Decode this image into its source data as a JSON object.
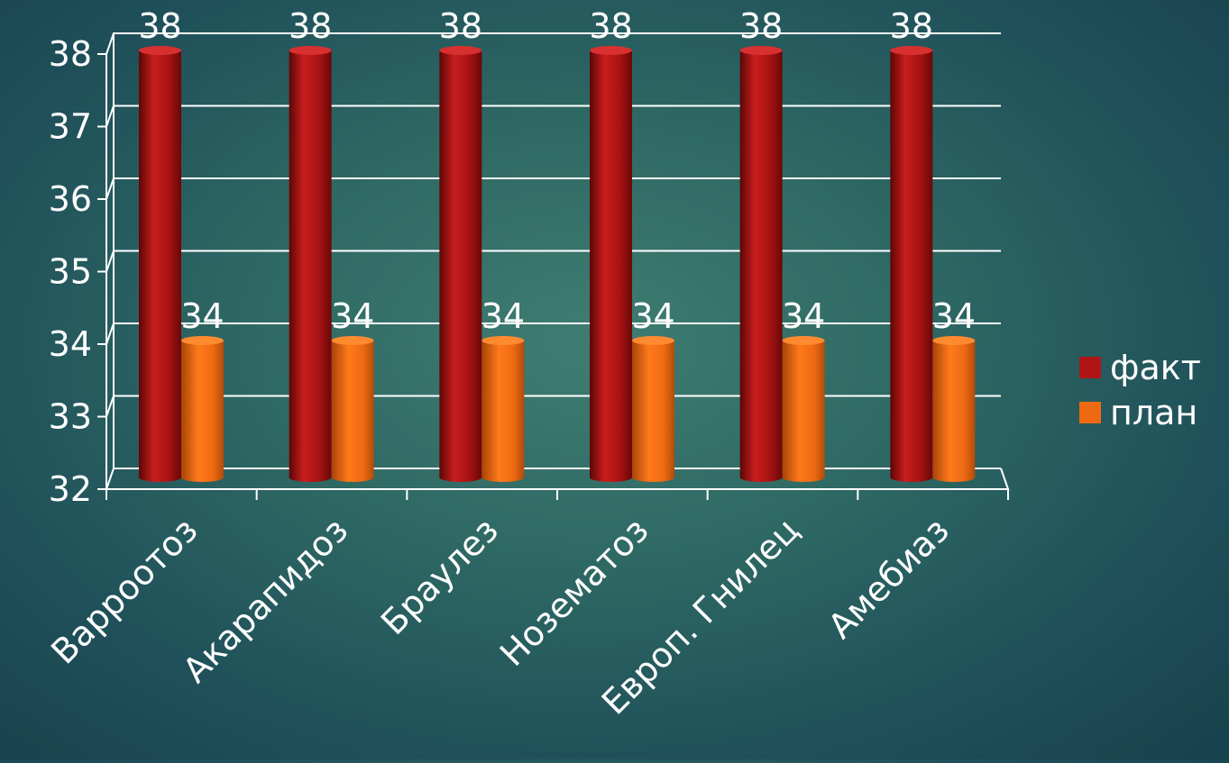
{
  "chart_data": {
    "type": "bar",
    "categories": [
      "Варроотоз",
      "Акарапидоз",
      "Браулез",
      "Нозематоз",
      "Европ. Гнилец",
      "Амебиаз"
    ],
    "series": [
      {
        "name": "факт",
        "values": [
          38,
          38,
          38,
          38,
          38,
          38
        ],
        "color": "#b01515"
      },
      {
        "name": "план",
        "values": [
          34,
          34,
          34,
          34,
          34,
          34
        ],
        "color": "#ee6a12"
      }
    ],
    "ylim": [
      32,
      38
    ],
    "yticks": [
      "32",
      "33",
      "34",
      "35",
      "36",
      "37",
      "38"
    ],
    "grid": true,
    "legend_position": "right",
    "style": "3d-cylinder"
  }
}
